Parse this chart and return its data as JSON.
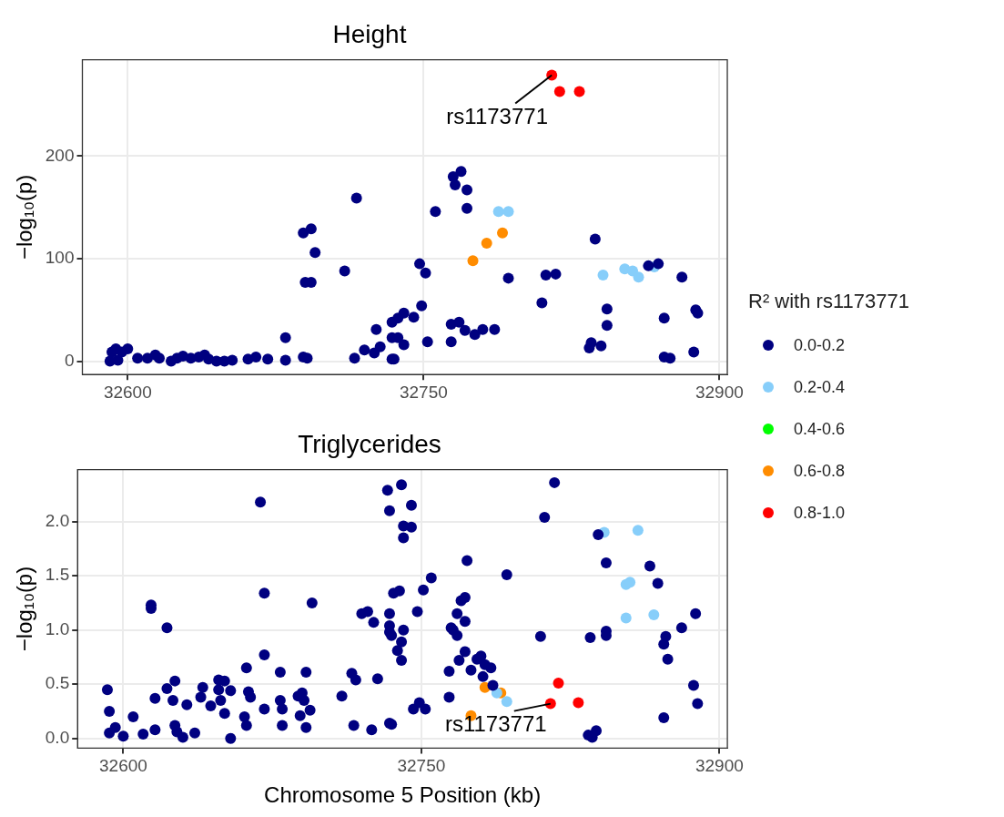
{
  "chart_data": [
    {
      "type": "scatter",
      "title": "Height",
      "ylabel": "−log₁₀(p)",
      "legend_title": "R² with rs1173771",
      "legend": "right",
      "grid": true,
      "marker": "circle",
      "xlim": [
        32577,
        32904
      ],
      "xticks": [
        32600,
        32750,
        32900
      ],
      "ylim": [
        -13,
        294
      ],
      "yticks": [
        0,
        100,
        200
      ],
      "annotations": [
        {
          "text": "rs1173771",
          "x": 32815,
          "y": 279
        }
      ],
      "series": [
        {
          "name": "0.0-0.2",
          "color": "#000080",
          "x": [
            32591,
            32592,
            32594,
            32595,
            32597,
            32600,
            32605,
            32610,
            32614,
            32616,
            32622,
            32625,
            32628,
            32632,
            32636,
            32639,
            32641,
            32645,
            32649,
            32653,
            32661,
            32665,
            32671,
            32680,
            32680,
            32689,
            32691,
            32689,
            32693,
            32695,
            32690,
            32693,
            32716,
            32710,
            32715,
            32720,
            32725,
            32726,
            32728,
            32734,
            32734,
            32734,
            32737,
            32740,
            32745,
            32737,
            32740,
            32735,
            32748,
            32751,
            32749,
            32752,
            32756,
            32765,
            32769,
            32766,
            32772,
            32772,
            32764,
            32764,
            32768,
            32771,
            32776,
            32780,
            32786,
            32793,
            32810,
            32812,
            32817,
            32837,
            32843,
            32843,
            32835,
            32840,
            32834,
            32864,
            32869,
            32881,
            32872,
            32888,
            32889,
            32887,
            32872,
            32875
          ],
          "values": [
            0,
            9,
            12,
            1,
            9,
            12,
            3,
            3,
            6,
            3,
            0,
            3,
            5,
            3,
            4,
            6,
            2,
            0,
            0,
            1,
            2,
            4,
            2,
            23,
            1,
            4,
            3,
            125,
            129,
            106,
            77,
            77,
            159,
            88,
            3,
            11,
            8,
            31,
            14,
            38,
            23,
            2,
            42,
            47,
            43,
            23,
            16,
            2,
            95,
            86,
            54,
            19,
            146,
            180,
            185,
            172,
            167,
            149,
            19,
            36,
            38,
            30,
            26,
            31,
            31,
            81,
            57,
            84,
            85,
            119,
            51,
            35,
            18,
            15,
            13,
            93,
            95,
            82,
            42,
            50,
            47,
            9,
            4,
            3
          ]
        },
        {
          "name": "0.2-0.4",
          "color": "#87cefa",
          "x": [
            32788,
            32793,
            32841,
            32852,
            32856,
            32859,
            32867
          ],
          "values": [
            146,
            146,
            84,
            90,
            88,
            82,
            92
          ]
        },
        {
          "name": "0.4-0.6",
          "color": "#00ff00"
        },
        {
          "name": "0.6-0.8",
          "color": "#ff8c00",
          "x": [
            32775,
            32782,
            32790
          ],
          "values": [
            98,
            115,
            125
          ]
        },
        {
          "name": "0.8-1.0",
          "color": "#ff0000",
          "x": [
            32815,
            32819,
            32829
          ],
          "values": [
            279,
            263,
            263
          ]
        }
      ]
    },
    {
      "type": "scatter",
      "title": "Triglycerides",
      "xlabel": "Chromosome 5 Position (kb)",
      "ylabel": "−log₁₀(p)",
      "legend": false,
      "grid": true,
      "marker": "circle",
      "xlim": [
        32577,
        32904
      ],
      "xticks": [
        32600,
        32750,
        32900
      ],
      "ylim": [
        -0.09,
        2.48
      ],
      "yticks": [
        {
          "value": 0,
          "label": "0.0"
        },
        {
          "value": 0.5,
          "label": "0.5"
        },
        {
          "value": 1,
          "label": "1.0"
        },
        {
          "value": 1.5,
          "label": "1.5"
        },
        {
          "value": 2,
          "label": "2.0"
        }
      ],
      "annotations": [
        {
          "text": "rs1173771",
          "x": 32815,
          "y": 0.32
        }
      ],
      "series": [
        {
          "color": "#000080",
          "x": [
            32592,
            32593,
            32593,
            32596,
            32600,
            32605,
            32610,
            32614,
            32614,
            32616,
            32616,
            32622,
            32622,
            32626,
            32625,
            32626,
            32627,
            32630,
            32632,
            32636,
            32640,
            32639,
            32644,
            32648,
            32651,
            32648,
            32649,
            32651,
            32654,
            32654,
            32662,
            32663,
            32664,
            32661,
            32662,
            32669,
            32671,
            32671,
            32671,
            32679,
            32679,
            32680,
            32680,
            32692,
            32690,
            32688,
            32691,
            32694,
            32689,
            32692,
            32695,
            32710,
            32715,
            32717,
            32716,
            32725,
            32720,
            32723,
            32726,
            32728,
            32734,
            32733,
            32740,
            32734,
            32741,
            32741,
            32736,
            32739,
            32734,
            32734,
            32734,
            32735,
            32741,
            32740,
            32738,
            32740,
            32745,
            32745,
            32751,
            32755,
            32748,
            32773,
            32793,
            32772,
            32770,
            32768,
            32772,
            32765,
            32766,
            32768,
            32772,
            32769,
            32764,
            32775,
            32780,
            32778,
            32782,
            32785,
            32781,
            32786,
            32764,
            32749,
            32746,
            32752,
            32735,
            32810,
            32812,
            32817,
            32835,
            32843,
            32843,
            32843,
            32839,
            32865,
            32869,
            32881,
            32888,
            32873,
            32872,
            32874,
            32887,
            32889,
            32872,
            32834,
            32838,
            32836
          ],
          "values": [
            0.45,
            0.25,
            0.05,
            0.1,
            0.02,
            0.2,
            0.04,
            1.23,
            1.2,
            0.37,
            0.08,
            1.02,
            0.46,
            0.53,
            0.35,
            0.12,
            0.06,
            0.01,
            0.31,
            0.05,
            0.47,
            0.38,
            0.3,
            0.54,
            0.53,
            0.45,
            0.35,
            0.23,
            0.44,
            0.0,
            0.65,
            0.43,
            0.38,
            0.2,
            0.12,
            2.18,
            1.34,
            0.77,
            0.27,
            0.61,
            0.35,
            0.27,
            0.12,
            0.61,
            0.42,
            0.39,
            0.35,
            0.26,
            0.21,
            0.1,
            1.25,
            0.39,
            0.6,
            0.54,
            0.12,
            0.08,
            1.15,
            1.17,
            1.07,
            0.55,
            0.14,
            2.29,
            2.34,
            2.1,
            1.96,
            1.85,
            1.34,
            1.36,
            1.15,
            1.04,
            0.98,
            0.95,
            1.0,
            0.89,
            0.81,
            0.72,
            2.15,
            1.95,
            1.37,
            1.48,
            1.17,
            1.64,
            1.51,
            1.3,
            1.27,
            1.15,
            1.08,
            1.02,
            1.0,
            0.95,
            0.8,
            0.72,
            0.62,
            0.63,
            0.76,
            0.73,
            0.68,
            0.65,
            0.57,
            0.49,
            0.38,
            0.33,
            0.27,
            0.27,
            0.13,
            0.94,
            2.04,
            2.36,
            0.93,
            1.62,
            0.99,
            0.95,
            1.88,
            1.59,
            1.43,
            1.02,
            1.15,
            0.94,
            0.87,
            0.73,
            0.49,
            0.32,
            0.19,
            0.03,
            0.07,
            0.01
          ]
        },
        {
          "color": "#87cefa",
          "x": [
            32842,
            32859,
            32853,
            32855,
            32853,
            32867,
            32788,
            32793
          ],
          "values": [
            1.9,
            1.92,
            1.42,
            1.44,
            1.11,
            1.14,
            0.42,
            0.34
          ]
        },
        {
          "color": "#ff8c00",
          "x": [
            32782,
            32790,
            32775
          ],
          "values": [
            0.47,
            0.42,
            0.21
          ]
        },
        {
          "color": "#ff0000",
          "x": [
            32815,
            32819,
            32829
          ],
          "values": [
            0.32,
            0.51,
            0.33
          ]
        }
      ]
    }
  ]
}
